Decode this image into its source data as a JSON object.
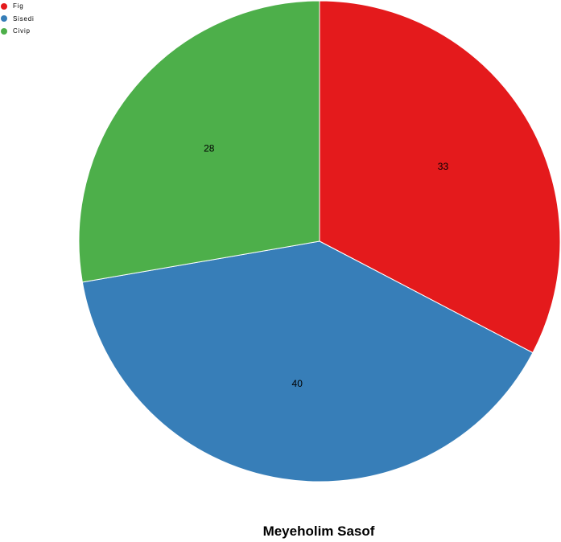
{
  "chart_data": {
    "type": "pie",
    "title": "Meyeholim Sasof",
    "legend_placement": "top-left",
    "slices": [
      {
        "label": "Fig",
        "value": 33,
        "color": "#e41a1c"
      },
      {
        "label": "Sisedi",
        "value": 40,
        "color": "#377eb8"
      },
      {
        "label": "Civip",
        "value": 28,
        "color": "#4daf4a"
      }
    ]
  }
}
